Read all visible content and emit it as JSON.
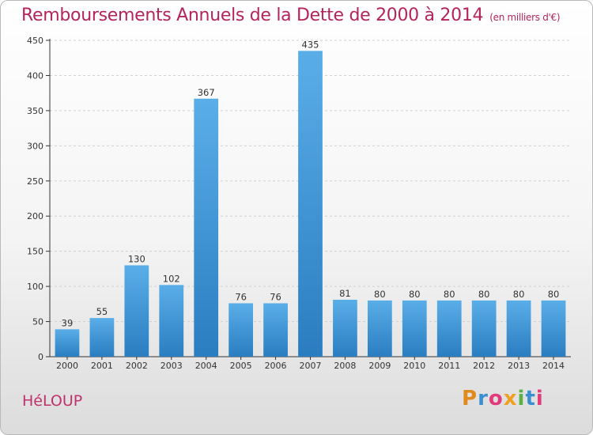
{
  "title": "Remboursements Annuels de la Dette de 2000 à 2014",
  "unit": "(en milliers d'€)",
  "city": "HéLOUP",
  "logo": {
    "text": "Proxiti"
  },
  "colors": {
    "bar_light": "#5aaee8",
    "bar_dark": "#2a7dc0",
    "title": "#b4245c"
  },
  "chart_data": {
    "type": "bar",
    "title": "Remboursements Annuels de la Dette de 2000 à 2014",
    "subtitle": "(en milliers d'€)",
    "categories": [
      "2000",
      "2001",
      "2002",
      "2003",
      "2004",
      "2005",
      "2006",
      "2007",
      "2008",
      "2009",
      "2010",
      "2011",
      "2012",
      "2013",
      "2014"
    ],
    "values": [
      39,
      55,
      130,
      102,
      367,
      76,
      76,
      435,
      81,
      80,
      80,
      80,
      80,
      80,
      80
    ],
    "ylim": [
      0,
      450
    ],
    "yticks": [
      0,
      50,
      100,
      150,
      200,
      250,
      300,
      350,
      400,
      450
    ],
    "grid": true,
    "legend": "none"
  }
}
